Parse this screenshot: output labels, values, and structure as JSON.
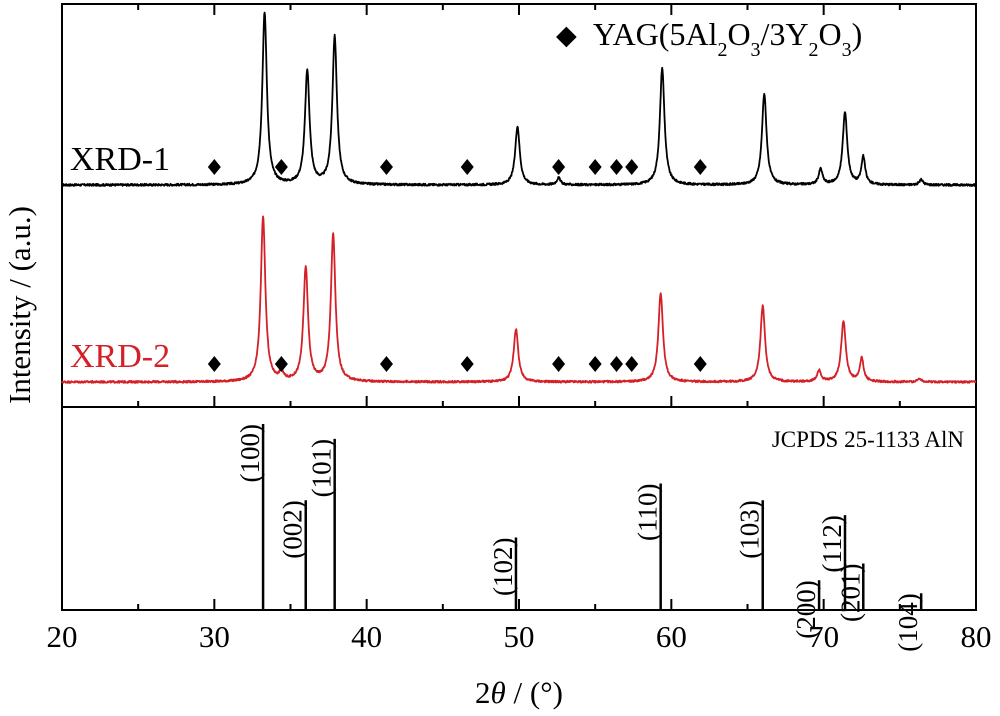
{
  "chart_data": {
    "type": "line",
    "xlabel_prefix": "2",
    "xlabel_theta": "θ",
    "xlabel_suffix": " / (°)",
    "ylabel": "Intensity / (a.u.)",
    "xlim": [
      20,
      80
    ],
    "x_ticks": [
      20,
      30,
      40,
      50,
      60,
      70,
      80
    ],
    "legend": {
      "marker": "◆",
      "text_parts": [
        "YAG(5Al",
        "2",
        "O",
        "3",
        "/3Y",
        "2",
        "O",
        "3",
        ")"
      ]
    },
    "series": [
      {
        "name": "XRD-1",
        "color": "#000000",
        "peaks": [
          {
            "x": 33.3,
            "h": 1.0,
            "w": 0.18
          },
          {
            "x": 36.1,
            "h": 0.66,
            "w": 0.18
          },
          {
            "x": 37.9,
            "h": 0.86,
            "w": 0.18
          },
          {
            "x": 49.9,
            "h": 0.34,
            "w": 0.18
          },
          {
            "x": 52.6,
            "h": 0.04,
            "w": 0.15
          },
          {
            "x": 59.4,
            "h": 0.68,
            "w": 0.18
          },
          {
            "x": 66.1,
            "h": 0.53,
            "w": 0.18
          },
          {
            "x": 69.8,
            "h": 0.09,
            "w": 0.15
          },
          {
            "x": 71.4,
            "h": 0.42,
            "w": 0.18
          },
          {
            "x": 72.6,
            "h": 0.16,
            "w": 0.15
          },
          {
            "x": 76.4,
            "h": 0.03,
            "w": 0.15
          }
        ],
        "yag_markers": [
          30.0,
          34.4,
          41.3,
          46.6,
          52.6,
          55.0,
          56.4,
          57.4,
          61.9
        ]
      },
      {
        "name": "XRD-2",
        "color": "#d42027",
        "peaks": [
          {
            "x": 33.2,
            "h": 1.0,
            "w": 0.18
          },
          {
            "x": 36.0,
            "h": 0.69,
            "w": 0.18
          },
          {
            "x": 37.8,
            "h": 0.89,
            "w": 0.18
          },
          {
            "x": 34.4,
            "h": 0.05,
            "w": 0.15
          },
          {
            "x": 49.8,
            "h": 0.32,
            "w": 0.18
          },
          {
            "x": 59.3,
            "h": 0.54,
            "w": 0.18
          },
          {
            "x": 66.0,
            "h": 0.46,
            "w": 0.18
          },
          {
            "x": 69.7,
            "h": 0.07,
            "w": 0.15
          },
          {
            "x": 71.3,
            "h": 0.37,
            "w": 0.18
          },
          {
            "x": 72.5,
            "h": 0.14,
            "w": 0.15
          },
          {
            "x": 76.3,
            "h": 0.02,
            "w": 0.15
          }
        ],
        "yag_markers": [
          30.0,
          34.4,
          41.3,
          46.6,
          52.6,
          55.0,
          56.4,
          57.4,
          61.9
        ]
      }
    ],
    "reference": {
      "label": "JCPDS 25-1133 AlN",
      "lines": [
        {
          "x": 33.2,
          "h": 1.0,
          "hkl": "(100)"
        },
        {
          "x": 36.0,
          "h": 0.59,
          "hkl": "(002)"
        },
        {
          "x": 37.9,
          "h": 0.92,
          "hkl": "(101)"
        },
        {
          "x": 49.8,
          "h": 0.39,
          "hkl": "(102)"
        },
        {
          "x": 59.3,
          "h": 0.68,
          "hkl": "(110)"
        },
        {
          "x": 66.0,
          "h": 0.59,
          "hkl": "(103)"
        },
        {
          "x": 69.7,
          "h": 0.16,
          "hkl": "(200)"
        },
        {
          "x": 71.4,
          "h": 0.51,
          "hkl": "(112)"
        },
        {
          "x": 72.6,
          "h": 0.25,
          "hkl": "(201)"
        },
        {
          "x": 76.4,
          "h": 0.09,
          "hkl": "(104)"
        }
      ]
    }
  }
}
